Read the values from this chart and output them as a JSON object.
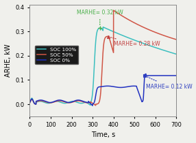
{
  "title": "",
  "xlabel": "Time, s",
  "ylabel": "ARHE, kW",
  "xlim": [
    0,
    700
  ],
  "ylim": [
    -0.05,
    0.41
  ],
  "xticks": [
    0,
    100,
    200,
    300,
    400,
    500,
    600,
    700
  ],
  "yticks": [
    0.0,
    0.1,
    0.2,
    0.3,
    0.4
  ],
  "legend_labels": [
    "SOC 100%",
    "SOC 50%",
    "SOC 0%"
  ],
  "colors": {
    "soc100": "#3bbfbf",
    "soc50": "#d05545",
    "soc0": "#2030c0"
  },
  "ann_color_100": "#4ab04a",
  "ann_color_50": "#c04040",
  "ann_color_0": "#3040c0",
  "background_color": "#f0f0ec"
}
